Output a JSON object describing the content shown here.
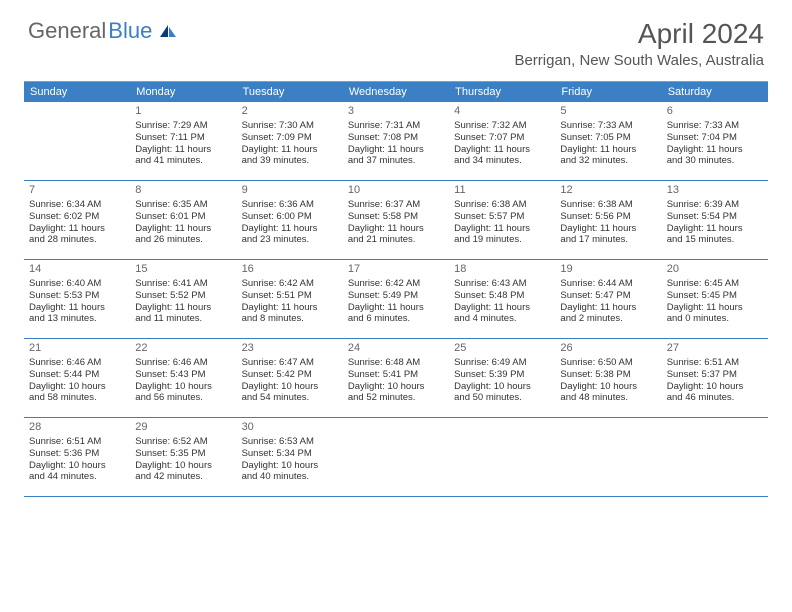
{
  "logo": {
    "gray": "General",
    "blue": "Blue"
  },
  "title": "April 2024",
  "location": "Berrigan, New South Wales, Australia",
  "styling": {
    "header_bg": "#3b7fc4",
    "header_text": "#ffffff",
    "divider": "#3b7fc4",
    "body_text": "#333333",
    "date_text": "#666666",
    "title_color": "#555555",
    "font_family": "Arial, Helvetica, sans-serif",
    "day_header_fontsize": 11,
    "cell_fontsize": 9.5,
    "title_fontsize": 28,
    "location_fontsize": 15,
    "page_bg": "#ffffff",
    "columns": 7
  },
  "day_names": [
    "Sunday",
    "Monday",
    "Tuesday",
    "Wednesday",
    "Thursday",
    "Friday",
    "Saturday"
  ],
  "weeks": [
    [
      null,
      {
        "d": "1",
        "l1": "Sunrise: 7:29 AM",
        "l2": "Sunset: 7:11 PM",
        "l3": "Daylight: 11 hours",
        "l4": "and 41 minutes."
      },
      {
        "d": "2",
        "l1": "Sunrise: 7:30 AM",
        "l2": "Sunset: 7:09 PM",
        "l3": "Daylight: 11 hours",
        "l4": "and 39 minutes."
      },
      {
        "d": "3",
        "l1": "Sunrise: 7:31 AM",
        "l2": "Sunset: 7:08 PM",
        "l3": "Daylight: 11 hours",
        "l4": "and 37 minutes."
      },
      {
        "d": "4",
        "l1": "Sunrise: 7:32 AM",
        "l2": "Sunset: 7:07 PM",
        "l3": "Daylight: 11 hours",
        "l4": "and 34 minutes."
      },
      {
        "d": "5",
        "l1": "Sunrise: 7:33 AM",
        "l2": "Sunset: 7:05 PM",
        "l3": "Daylight: 11 hours",
        "l4": "and 32 minutes."
      },
      {
        "d": "6",
        "l1": "Sunrise: 7:33 AM",
        "l2": "Sunset: 7:04 PM",
        "l3": "Daylight: 11 hours",
        "l4": "and 30 minutes."
      }
    ],
    [
      {
        "d": "7",
        "l1": "Sunrise: 6:34 AM",
        "l2": "Sunset: 6:02 PM",
        "l3": "Daylight: 11 hours",
        "l4": "and 28 minutes."
      },
      {
        "d": "8",
        "l1": "Sunrise: 6:35 AM",
        "l2": "Sunset: 6:01 PM",
        "l3": "Daylight: 11 hours",
        "l4": "and 26 minutes."
      },
      {
        "d": "9",
        "l1": "Sunrise: 6:36 AM",
        "l2": "Sunset: 6:00 PM",
        "l3": "Daylight: 11 hours",
        "l4": "and 23 minutes."
      },
      {
        "d": "10",
        "l1": "Sunrise: 6:37 AM",
        "l2": "Sunset: 5:58 PM",
        "l3": "Daylight: 11 hours",
        "l4": "and 21 minutes."
      },
      {
        "d": "11",
        "l1": "Sunrise: 6:38 AM",
        "l2": "Sunset: 5:57 PM",
        "l3": "Daylight: 11 hours",
        "l4": "and 19 minutes."
      },
      {
        "d": "12",
        "l1": "Sunrise: 6:38 AM",
        "l2": "Sunset: 5:56 PM",
        "l3": "Daylight: 11 hours",
        "l4": "and 17 minutes."
      },
      {
        "d": "13",
        "l1": "Sunrise: 6:39 AM",
        "l2": "Sunset: 5:54 PM",
        "l3": "Daylight: 11 hours",
        "l4": "and 15 minutes."
      }
    ],
    [
      {
        "d": "14",
        "l1": "Sunrise: 6:40 AM",
        "l2": "Sunset: 5:53 PM",
        "l3": "Daylight: 11 hours",
        "l4": "and 13 minutes."
      },
      {
        "d": "15",
        "l1": "Sunrise: 6:41 AM",
        "l2": "Sunset: 5:52 PM",
        "l3": "Daylight: 11 hours",
        "l4": "and 11 minutes."
      },
      {
        "d": "16",
        "l1": "Sunrise: 6:42 AM",
        "l2": "Sunset: 5:51 PM",
        "l3": "Daylight: 11 hours",
        "l4": "and 8 minutes."
      },
      {
        "d": "17",
        "l1": "Sunrise: 6:42 AM",
        "l2": "Sunset: 5:49 PM",
        "l3": "Daylight: 11 hours",
        "l4": "and 6 minutes."
      },
      {
        "d": "18",
        "l1": "Sunrise: 6:43 AM",
        "l2": "Sunset: 5:48 PM",
        "l3": "Daylight: 11 hours",
        "l4": "and 4 minutes."
      },
      {
        "d": "19",
        "l1": "Sunrise: 6:44 AM",
        "l2": "Sunset: 5:47 PM",
        "l3": "Daylight: 11 hours",
        "l4": "and 2 minutes."
      },
      {
        "d": "20",
        "l1": "Sunrise: 6:45 AM",
        "l2": "Sunset: 5:45 PM",
        "l3": "Daylight: 11 hours",
        "l4": "and 0 minutes."
      }
    ],
    [
      {
        "d": "21",
        "l1": "Sunrise: 6:46 AM",
        "l2": "Sunset: 5:44 PM",
        "l3": "Daylight: 10 hours",
        "l4": "and 58 minutes."
      },
      {
        "d": "22",
        "l1": "Sunrise: 6:46 AM",
        "l2": "Sunset: 5:43 PM",
        "l3": "Daylight: 10 hours",
        "l4": "and 56 minutes."
      },
      {
        "d": "23",
        "l1": "Sunrise: 6:47 AM",
        "l2": "Sunset: 5:42 PM",
        "l3": "Daylight: 10 hours",
        "l4": "and 54 minutes."
      },
      {
        "d": "24",
        "l1": "Sunrise: 6:48 AM",
        "l2": "Sunset: 5:41 PM",
        "l3": "Daylight: 10 hours",
        "l4": "and 52 minutes."
      },
      {
        "d": "25",
        "l1": "Sunrise: 6:49 AM",
        "l2": "Sunset: 5:39 PM",
        "l3": "Daylight: 10 hours",
        "l4": "and 50 minutes."
      },
      {
        "d": "26",
        "l1": "Sunrise: 6:50 AM",
        "l2": "Sunset: 5:38 PM",
        "l3": "Daylight: 10 hours",
        "l4": "and 48 minutes."
      },
      {
        "d": "27",
        "l1": "Sunrise: 6:51 AM",
        "l2": "Sunset: 5:37 PM",
        "l3": "Daylight: 10 hours",
        "l4": "and 46 minutes."
      }
    ],
    [
      {
        "d": "28",
        "l1": "Sunrise: 6:51 AM",
        "l2": "Sunset: 5:36 PM",
        "l3": "Daylight: 10 hours",
        "l4": "and 44 minutes."
      },
      {
        "d": "29",
        "l1": "Sunrise: 6:52 AM",
        "l2": "Sunset: 5:35 PM",
        "l3": "Daylight: 10 hours",
        "l4": "and 42 minutes."
      },
      {
        "d": "30",
        "l1": "Sunrise: 6:53 AM",
        "l2": "Sunset: 5:34 PM",
        "l3": "Daylight: 10 hours",
        "l4": "and 40 minutes."
      },
      null,
      null,
      null,
      null
    ]
  ]
}
